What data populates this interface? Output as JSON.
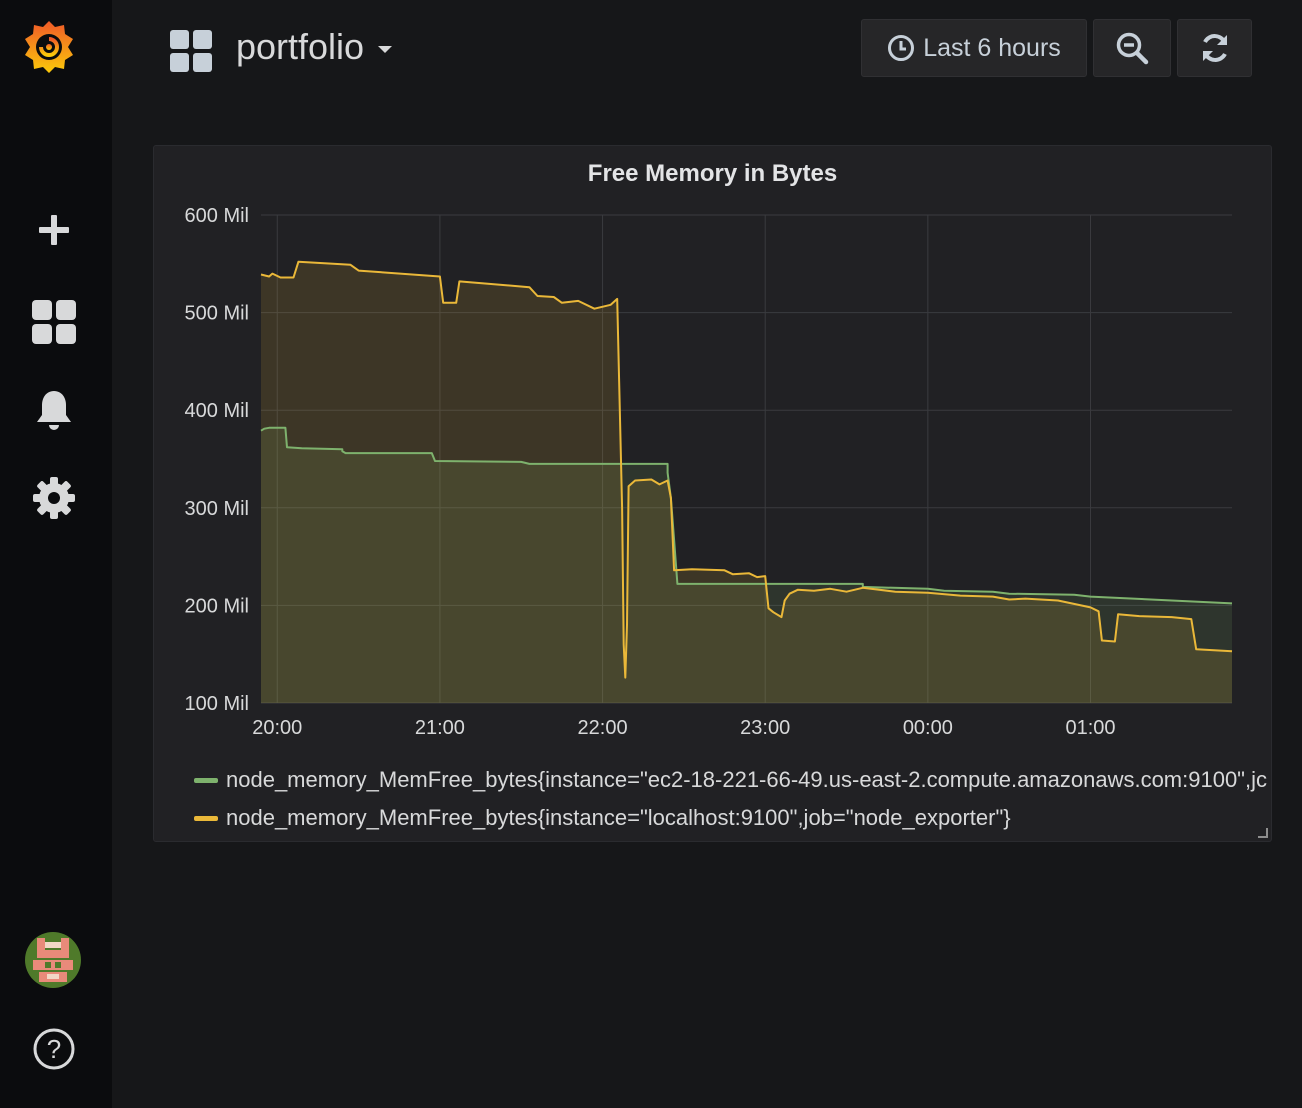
{
  "app": {
    "dashboard_title": "portfolio"
  },
  "toolbar": {
    "time_range_label": "Last 6 hours"
  },
  "sidebar": {
    "items": [
      {
        "icon": "grafana-logo-icon"
      },
      {
        "icon": "plus-icon"
      },
      {
        "icon": "dashboards-grid-icon"
      },
      {
        "icon": "bell-icon"
      },
      {
        "icon": "gear-icon"
      },
      {
        "icon": "user-avatar"
      },
      {
        "icon": "help-icon"
      }
    ]
  },
  "panel": {
    "title": "Free Memory in Bytes"
  },
  "legend": [
    {
      "label": "node_memory_MemFree_bytes{instance=\"ec2-18-221-66-49.us-east-2.compute.amazonaws.com:9100\",jc",
      "color": "#7eb26d"
    },
    {
      "label": "node_memory_MemFree_bytes{instance=\"localhost:9100\",job=\"node_exporter\"}",
      "color": "#eab839"
    }
  ],
  "chart_data": {
    "type": "area",
    "title": "Free Memory in Bytes",
    "xlabel": "",
    "ylabel": "",
    "x_tick_labels": [
      "20:00",
      "21:00",
      "22:00",
      "23:00",
      "00:00",
      "01:00"
    ],
    "y_tick_labels": [
      "600 Mil",
      "500 Mil",
      "400 Mil",
      "300 Mil",
      "200 Mil",
      "100 Mil"
    ],
    "ylim": [
      100,
      600
    ],
    "xlim_hours": [
      19.9,
      25.87
    ],
    "grid": true,
    "legend_position": "bottom",
    "series": [
      {
        "name": "node_memory_MemFree_bytes{instance=\"ec2-18-221-66-49.us-east-2.compute.amazonaws.com:9100\",jc",
        "color": "#7eb26d",
        "points": [
          [
            19.9,
            379
          ],
          [
            19.92,
            381
          ],
          [
            19.95,
            382
          ],
          [
            19.97,
            382
          ],
          [
            20.05,
            382
          ],
          [
            20.06,
            362
          ],
          [
            20.15,
            361
          ],
          [
            20.4,
            360
          ],
          [
            20.4,
            358
          ],
          [
            20.42,
            356
          ],
          [
            20.95,
            356
          ],
          [
            20.97,
            348
          ],
          [
            21.5,
            347
          ],
          [
            21.55,
            345
          ],
          [
            22.4,
            345
          ],
          [
            22.4,
            336
          ],
          [
            22.42,
            310
          ],
          [
            22.44,
            267
          ],
          [
            22.46,
            222
          ],
          [
            23.6,
            222
          ],
          [
            23.6,
            219
          ],
          [
            24.0,
            217
          ],
          [
            24.1,
            215
          ],
          [
            24.4,
            214
          ],
          [
            24.5,
            212
          ],
          [
            24.9,
            211
          ],
          [
            25.0,
            209
          ],
          [
            25.87,
            202
          ]
        ]
      },
      {
        "name": "node_memory_MemFree_bytes{instance=\"localhost:9100\",job=\"node_exporter\"}",
        "color": "#eab839",
        "points": [
          [
            19.9,
            539
          ],
          [
            19.95,
            537
          ],
          [
            19.97,
            540
          ],
          [
            20.02,
            536
          ],
          [
            20.1,
            536
          ],
          [
            20.13,
            552
          ],
          [
            20.45,
            549
          ],
          [
            20.5,
            543
          ],
          [
            21.0,
            537
          ],
          [
            21.02,
            510
          ],
          [
            21.1,
            510
          ],
          [
            21.12,
            532
          ],
          [
            21.55,
            526
          ],
          [
            21.6,
            517
          ],
          [
            21.7,
            516
          ],
          [
            21.75,
            510
          ],
          [
            21.85,
            512
          ],
          [
            21.95,
            504
          ],
          [
            22.05,
            508
          ],
          [
            22.09,
            514
          ],
          [
            22.12,
            300
          ],
          [
            22.13,
            160
          ],
          [
            22.14,
            126
          ],
          [
            22.15,
            180
          ],
          [
            22.16,
            322
          ],
          [
            22.2,
            328
          ],
          [
            22.3,
            329
          ],
          [
            22.35,
            324
          ],
          [
            22.4,
            328
          ],
          [
            22.42,
            310
          ],
          [
            22.44,
            236
          ],
          [
            22.55,
            237
          ],
          [
            22.75,
            236
          ],
          [
            22.8,
            232
          ],
          [
            22.9,
            233
          ],
          [
            22.95,
            229
          ],
          [
            23.0,
            230
          ],
          [
            23.02,
            197
          ],
          [
            23.05,
            193
          ],
          [
            23.1,
            188
          ],
          [
            23.12,
            205
          ],
          [
            23.15,
            212
          ],
          [
            23.2,
            216
          ],
          [
            23.3,
            215
          ],
          [
            23.4,
            217
          ],
          [
            23.5,
            214
          ],
          [
            23.6,
            218
          ],
          [
            23.8,
            214
          ],
          [
            24.0,
            213
          ],
          [
            24.2,
            210
          ],
          [
            24.4,
            209
          ],
          [
            24.5,
            206
          ],
          [
            24.6,
            207
          ],
          [
            24.8,
            205
          ],
          [
            25.0,
            198
          ],
          [
            25.05,
            194
          ],
          [
            25.07,
            164
          ],
          [
            25.15,
            163
          ],
          [
            25.17,
            191
          ],
          [
            25.3,
            189
          ],
          [
            25.5,
            188
          ],
          [
            25.62,
            186
          ],
          [
            25.65,
            155
          ],
          [
            25.87,
            153
          ]
        ]
      }
    ]
  }
}
